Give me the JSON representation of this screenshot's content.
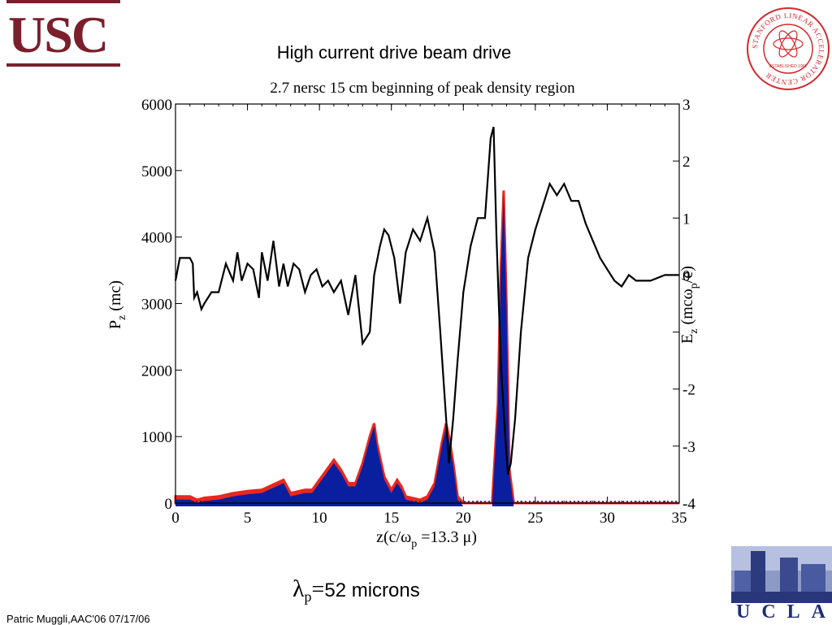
{
  "logos": {
    "left": "USC",
    "right_seal": "STANFORD LINEAR ACCELERATOR CENTER",
    "right_seal_sub": "ESTABLISHED 1962",
    "bottom_right": "UCLA"
  },
  "slide_title": "High current drive beam drive",
  "formula": {
    "lambda": "λ",
    "sub": "p",
    "equals": "=",
    "value": "52 microns"
  },
  "footer": "Patric Muggli,AAC'06 07/17/06",
  "colors": {
    "usc": "#7a1f2b",
    "beam": "#0a1ea0",
    "beam_edge": "#e8281e",
    "line": "#000000",
    "ucla": "#1d2c7a"
  },
  "chart_data": {
    "type": "area",
    "title": "2.7 nersc 15 cm beginning of peak density region",
    "xlabel": "z(c/ω",
    "xlabel_sub": "p",
    "xlabel_tail": " =13.3 μ)",
    "ylabel": "P",
    "ylabel_sub": "z",
    "ylabel_tail": " (mc)",
    "y2label": "E",
    "y2label_sub": "z",
    "y2label_tail": " (mcω",
    "y2label_sub2": "p",
    "y2label_end": "/e)",
    "xlim": [
      0,
      35
    ],
    "ylim": [
      0,
      6000
    ],
    "y2lim": [
      -4,
      3
    ],
    "xticks": [
      0,
      5,
      10,
      15,
      20,
      25,
      30,
      35
    ],
    "yticks": [
      0,
      1000,
      2000,
      3000,
      4000,
      5000,
      6000
    ],
    "y2ticks": [
      -4,
      -3,
      -2,
      -1,
      0,
      1,
      2,
      3
    ],
    "y2tick_labels": [
      "-4",
      "-3",
      "-2",
      "",
      "0",
      "1",
      "2",
      "3"
    ],
    "series": [
      {
        "kind": "field",
        "x": [
          0,
          0.3,
          0.6,
          1.0,
          1.2,
          1.3,
          1.5,
          1.8,
          2.0,
          2.5,
          3.0,
          3.5,
          4.0,
          4.3,
          4.6,
          5.0,
          5.4,
          5.8,
          6.0,
          6.4,
          6.8,
          7.2,
          7.5,
          7.8,
          8.2,
          8.6,
          9.0,
          9.4,
          9.8,
          10.2,
          10.6,
          11.0,
          11.5,
          12.0,
          12.5,
          13.0,
          13.5,
          13.8,
          14.2,
          14.5,
          14.8,
          15.2,
          15.6,
          16.0,
          16.5,
          17.0,
          17.5,
          18.0,
          18.4,
          18.8,
          19.0,
          19.3,
          19.6,
          20.0,
          20.5,
          21.0,
          21.5,
          21.9,
          22.1,
          22.3,
          22.6,
          22.9,
          23.1,
          23.3,
          23.6,
          24.0,
          24.5,
          25.0,
          25.5,
          26.0,
          26.5,
          27.0,
          27.5,
          28.0,
          28.5,
          29.0,
          29.5,
          30.0,
          30.5,
          31.0,
          31.5,
          32.0,
          33.0,
          34.0,
          35.0
        ],
        "y": [
          -0.1,
          0.3,
          0.3,
          0.3,
          0.2,
          -0.4,
          -0.3,
          -0.6,
          -0.5,
          -0.3,
          -0.3,
          0.2,
          -0.1,
          0.4,
          -0.1,
          0.2,
          0.1,
          -0.4,
          0.4,
          -0.1,
          0.6,
          -0.2,
          0.2,
          -0.2,
          0.2,
          0.1,
          -0.3,
          0.0,
          0.1,
          -0.2,
          -0.1,
          -0.3,
          -0.1,
          -0.7,
          0.0,
          -1.2,
          -1.0,
          0.0,
          0.5,
          0.8,
          0.7,
          0.3,
          -0.5,
          0.4,
          0.8,
          0.6,
          1.0,
          0.4,
          -1.0,
          -2.5,
          -3.3,
          -2.5,
          -1.5,
          -0.3,
          0.5,
          1.0,
          1.0,
          2.4,
          2.6,
          0.7,
          -1.5,
          -2.8,
          -3.5,
          -3.3,
          -2.5,
          -1.0,
          0.3,
          0.8,
          1.2,
          1.6,
          1.4,
          1.6,
          1.3,
          1.3,
          0.9,
          0.6,
          0.3,
          0.1,
          -0.1,
          -0.2,
          0.0,
          -0.1,
          -0.1,
          0.0,
          0.0
        ]
      },
      {
        "kind": "beam",
        "x": [
          0,
          1.0,
          1.5,
          2.0,
          3.0,
          4.0,
          5.0,
          6.0,
          7.0,
          7.5,
          8.0,
          9.0,
          9.5,
          10.0,
          10.5,
          11.0,
          11.5,
          12.0,
          12.5,
          13.0,
          13.5,
          13.8,
          14.0,
          14.5,
          15.0,
          15.4,
          15.7,
          16.0,
          17.0,
          17.5,
          18.0,
          18.5,
          18.8,
          19.0,
          19.3,
          19.6,
          20.0,
          22.0,
          22.4,
          22.6,
          22.8,
          23.0,
          23.2,
          23.5,
          24.0,
          35.0
        ],
        "y": [
          100,
          100,
          50,
          80,
          100,
          150,
          180,
          200,
          300,
          350,
          150,
          200,
          200,
          350,
          500,
          650,
          500,
          300,
          300,
          600,
          1000,
          1200,
          900,
          400,
          200,
          350,
          250,
          100,
          50,
          100,
          300,
          900,
          1200,
          1000,
          600,
          100,
          0,
          0,
          1500,
          3500,
          4700,
          3000,
          500,
          0,
          0,
          0
        ]
      }
    ]
  }
}
